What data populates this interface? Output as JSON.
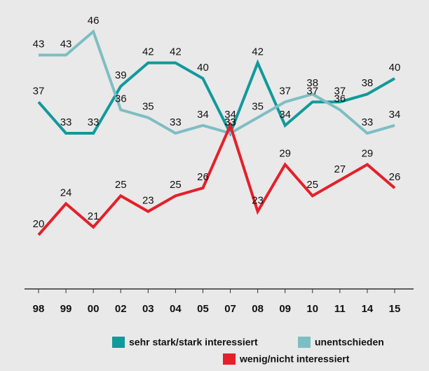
{
  "chart_data": {
    "type": "line",
    "categories": [
      "98",
      "99",
      "00",
      "02",
      "03",
      "04",
      "05",
      "07",
      "08",
      "09",
      "10",
      "11",
      "14",
      "15"
    ],
    "series": [
      {
        "name": "sehr stark/stark interessiert",
        "color": "#12999b",
        "values": [
          37,
          33,
          33,
          39,
          42,
          42,
          40,
          33,
          42,
          34,
          37,
          37,
          38,
          40
        ]
      },
      {
        "name": "unentschieden",
        "color": "#7dbec3",
        "values": [
          43,
          43,
          46,
          36,
          35,
          33,
          34,
          33,
          35,
          37,
          38,
          36,
          33,
          34
        ]
      },
      {
        "name": "wenig/nicht interessiert",
        "color": "#e4202a",
        "values": [
          20,
          24,
          21,
          25,
          23,
          25,
          26,
          34,
          23,
          29,
          25,
          27,
          29,
          26
        ]
      }
    ]
  }
}
